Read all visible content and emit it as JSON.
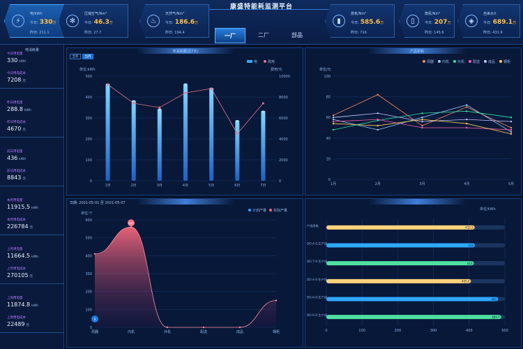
{
  "header": {
    "title": "康盛特能耗监测平台",
    "tabs": [
      "一厂",
      "二厂",
      "部品"
    ],
    "active_tab": 0
  },
  "kpis": [
    {
      "name": "电/kWh",
      "today_label": "今日:",
      "today_value": "330",
      "unit": "万",
      "yest_label": "昨日:",
      "yest_value": "211.1",
      "icon": "lightning-icon",
      "active": true
    },
    {
      "name": "压缩空气/Nm³",
      "today_label": "今日:",
      "today_value": "46.3",
      "unit": "万",
      "yest_label": "昨日:",
      "yest_value": "27.7",
      "icon": "fan-icon",
      "active": false
    },
    {
      "name": "天然气/Nm³",
      "today_label": "今日:",
      "today_value": "186.6",
      "unit": "万",
      "yest_label": "昨日:",
      "yest_value": "194.4",
      "icon": "flame-icon",
      "active": false
    },
    {
      "name": "蒸氧/Nm³",
      "today_label": "今日:",
      "today_value": "585.6",
      "unit": "万",
      "yest_label": "昨日:",
      "yest_value": "716",
      "icon": "tank-icon",
      "active": false
    },
    {
      "name": "蒸氮/Nm³",
      "today_label": "今日:",
      "today_value": "207",
      "unit": "万",
      "yest_label": "昨日:",
      "yest_value": "145.6",
      "icon": "cylinder-icon",
      "active": false
    },
    {
      "name": "自来水/t",
      "today_label": "今日:",
      "today_value": "689.1",
      "unit": "万",
      "yest_label": "昨日:",
      "yest_value": "431.9",
      "icon": "water-icon",
      "active": false
    }
  ],
  "left": {
    "head": "电消耗量",
    "stats": [
      {
        "label": "今日用电量",
        "value": "330",
        "unit": "kWh"
      },
      {
        "label": "今日用电成本",
        "value": "7208",
        "unit": "元"
      },
      {
        "label": "昨日用电量",
        "value": "288.8",
        "unit": "kWh"
      },
      {
        "label": "昨日用电成本",
        "value": "4670",
        "unit": "元"
      },
      {
        "label": "前日用电量",
        "value": "436",
        "unit": "kWh"
      },
      {
        "label": "前日用电成本",
        "value": "8843",
        "unit": "元"
      },
      {
        "label": "本月用电量",
        "value": "11915.5",
        "unit": "kWh"
      },
      {
        "label": "本月用电成本",
        "value": "226784",
        "unit": "元"
      },
      {
        "label": "上月用电量",
        "value": "11664.5",
        "unit": "kWh"
      },
      {
        "label": "上月用电成本",
        "value": "270105",
        "unit": "元"
      },
      {
        "label": "上周用电量",
        "value": "11874.8",
        "unit": "kWh"
      },
      {
        "label": "上周用电成本",
        "value": "22489",
        "unit": "元"
      }
    ]
  },
  "colors": {
    "accent": "#3aa0ff",
    "kpi_value": "#ffc04a",
    "bar": "#37a6ef",
    "line": "#e6738a"
  },
  "panel1": {
    "title": "电消耗量(近7天)",
    "buttons": [
      "当年",
      "当月"
    ],
    "legend": [
      "电",
      "费用"
    ],
    "ylabel_left": "单位:kWh",
    "ylabel_right": "费用/元"
  },
  "panel2": {
    "title": "产品单耗",
    "ylabel": "单位/元",
    "legend": [
      "周器",
      "内机",
      "外机",
      "配送",
      "成品",
      "钢柜"
    ]
  },
  "panel3": {
    "date_label": "日期: 2021-05-01 至 2021-05-07",
    "ylabel": "单位:个",
    "legend": [
      "计划产量",
      "实际产量"
    ],
    "peak_label": "800",
    "start_label": "0"
  },
  "panel4": {
    "ylabel": "单位/kWh",
    "name_header": "产线用电"
  },
  "chart_data": [
    {
      "type": "bar",
      "categories": [
        "1日",
        "2日",
        "3日",
        "4日",
        "5日",
        "6日",
        "7日"
      ],
      "series": [
        {
          "name": "电",
          "values": [
            460,
            380,
            340,
            460,
            440,
            285,
            330
          ]
        },
        {
          "name": "费用",
          "values": [
            9200,
            7400,
            7000,
            8400,
            8800,
            4500,
            7400
          ]
        }
      ],
      "ylim": [
        0,
        500
      ],
      "ylim_right": [
        0,
        10000
      ],
      "yticks": [
        0,
        100,
        200,
        300,
        400,
        500
      ],
      "yticks_right": [
        0,
        2000,
        4000,
        6000,
        8000,
        10000
      ]
    },
    {
      "type": "line",
      "categories": [
        "1月",
        "2月",
        "3月",
        "4月",
        "5月"
      ],
      "series": [
        {
          "name": "周器",
          "values": [
            62,
            82,
            52,
            70,
            50
          ]
        },
        {
          "name": "内机",
          "values": [
            58,
            48,
            60,
            72,
            46
          ]
        },
        {
          "name": "外机",
          "values": [
            48,
            57,
            64,
            66,
            60
          ]
        },
        {
          "name": "配送",
          "values": [
            56,
            58,
            50,
            50,
            48
          ]
        },
        {
          "name": "成品",
          "values": [
            60,
            64,
            56,
            58,
            56
          ]
        },
        {
          "name": "钢柜",
          "values": [
            54,
            52,
            58,
            54,
            44
          ]
        }
      ],
      "ylim": [
        0,
        100
      ],
      "yticks": [
        0,
        20,
        40,
        60,
        80,
        100
      ]
    },
    {
      "type": "area",
      "categories": [
        "周器",
        "内机",
        "外机",
        "配送",
        "成品",
        "钢柜"
      ],
      "series": [
        {
          "name": "实际产量",
          "values": [
            410,
            560,
            0,
            0,
            0,
            150
          ]
        }
      ],
      "ylim": [
        0,
        600
      ],
      "yticks": [
        0,
        100,
        200,
        300,
        400,
        500,
        600
      ]
    },
    {
      "type": "bar",
      "orientation": "horizontal",
      "categories": [
        "产线用电",
        "DO-4-0-生产线",
        "DO-7-0-生产线",
        "DO-4-0-生产线",
        "DO-6-0-生产线",
        "DO-6-0-生产线"
      ],
      "values": [
        415.5,
        416,
        413,
        405,
        481,
        489.7
      ],
      "labels": [
        "415.5",
        "416",
        "413",
        "405.0",
        "481",
        "489.7"
      ],
      "xlim": [
        0,
        500
      ],
      "xticks": [
        0,
        100,
        200,
        300,
        400,
        500
      ]
    }
  ]
}
